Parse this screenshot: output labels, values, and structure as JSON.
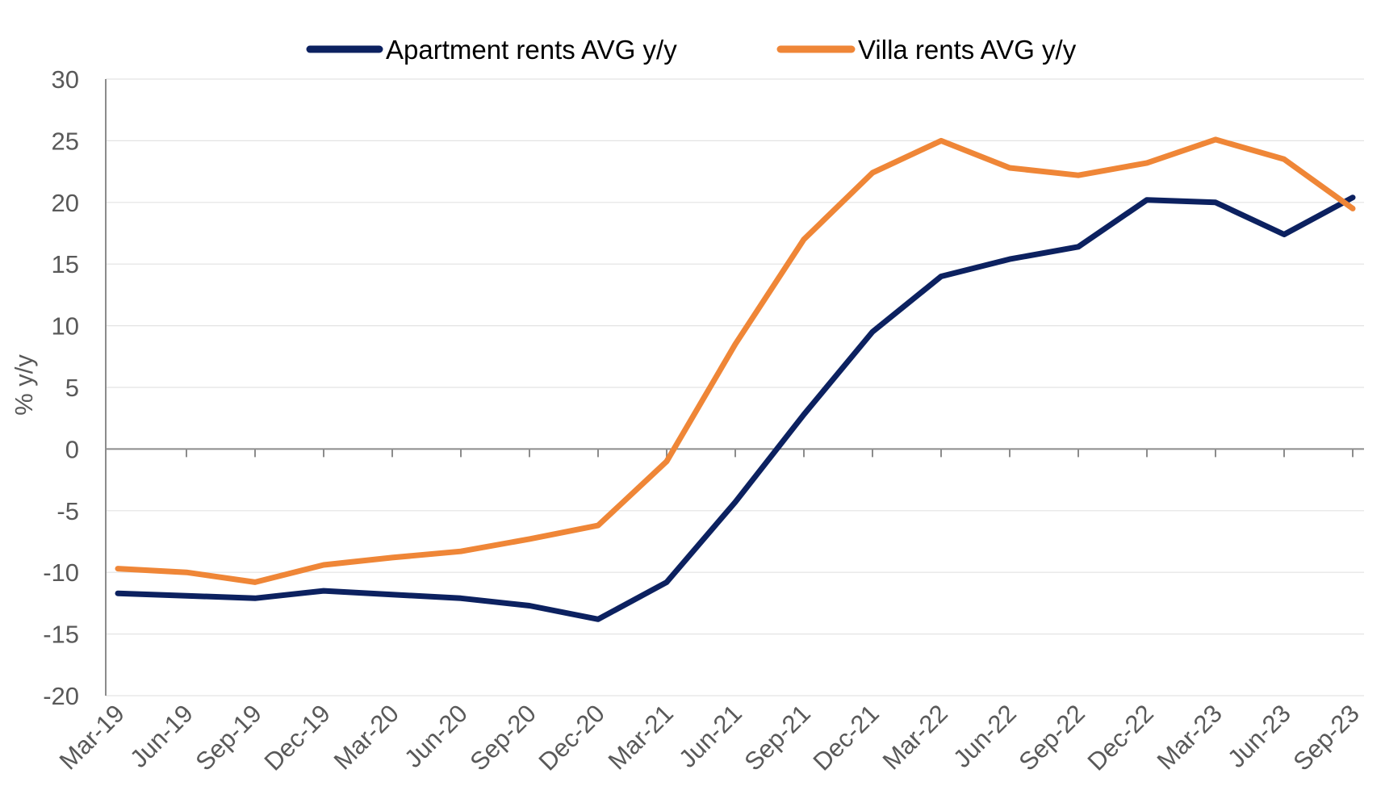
{
  "chart_data": {
    "type": "line",
    "title": "",
    "xlabel": "",
    "ylabel": "% y/y",
    "ylim": [
      -20,
      30
    ],
    "ytick_step": 5,
    "yticks": [
      "30",
      "25",
      "20",
      "15",
      "10",
      "5",
      "0",
      "-5",
      "-10",
      "-15",
      "-20"
    ],
    "grid": true,
    "legend_position": "top-center",
    "categories": [
      "Mar-19",
      "Jun-19",
      "Sep-19",
      "Dec-19",
      "Mar-20",
      "Jun-20",
      "Sep-20",
      "Dec-20",
      "Mar-21",
      "Jun-21",
      "Sep-21",
      "Dec-21",
      "Mar-22",
      "Jun-22",
      "Sep-22",
      "Dec-22",
      "Mar-23",
      "Jun-23",
      "Sep-23"
    ],
    "series": [
      {
        "name": "Apartment rents AVG y/y",
        "color": "#0c2160",
        "values": [
          -11.7,
          -11.9,
          -12.1,
          -11.5,
          -11.8,
          -12.1,
          -12.7,
          -13.8,
          -10.8,
          -4.3,
          2.8,
          9.5,
          14.0,
          15.4,
          16.4,
          20.2,
          20.0,
          17.4,
          20.4
        ]
      },
      {
        "name": "Villa rents AVG y/y",
        "color": "#ef8637",
        "values": [
          -9.7,
          -10.0,
          -10.8,
          -9.4,
          -8.8,
          -8.3,
          -7.3,
          -6.2,
          -1.0,
          8.5,
          17.0,
          22.4,
          25.0,
          22.8,
          22.2,
          23.2,
          25.1,
          23.5,
          19.5
        ]
      }
    ]
  }
}
